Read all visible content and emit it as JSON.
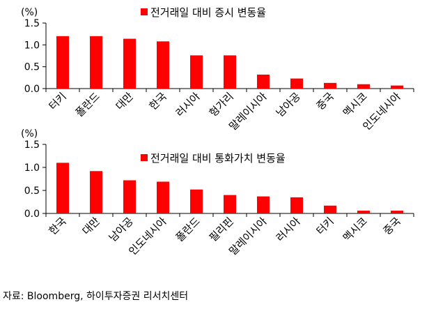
{
  "chart_data": [
    {
      "type": "bar",
      "unit": "(%)",
      "legend": "전거래일 대비 증시 변동율",
      "legend_position": "top-center",
      "bar_color": "#ff0000",
      "categories": [
        "터키",
        "폴란드",
        "대만",
        "한국",
        "러시아",
        "헝가리",
        "말레이시아",
        "남아공",
        "중국",
        "멕시코",
        "인도네시아"
      ],
      "values": [
        1.2,
        1.2,
        1.14,
        1.08,
        0.76,
        0.76,
        0.32,
        0.23,
        0.13,
        0.1,
        0.07
      ],
      "ylim": [
        0,
        1.5
      ],
      "yticks": [
        "0.0",
        "0.5",
        "1.0",
        "1.5"
      ],
      "grid": false
    },
    {
      "type": "bar",
      "unit": "(%)",
      "legend": "전거래일 대비 통화가치 변동율",
      "legend_position": "top-center",
      "bar_color": "#ff0000",
      "categories": [
        "한국",
        "대만",
        "남아공",
        "인도네시아",
        "폴란드",
        "필리핀",
        "말레이시아",
        "러시아",
        "터키",
        "멕시코",
        "중국"
      ],
      "values": [
        1.1,
        0.92,
        0.72,
        0.69,
        0.52,
        0.4,
        0.37,
        0.35,
        0.17,
        0.06,
        0.06
      ],
      "ylim": [
        0,
        1.5
      ],
      "yticks": [
        "0.0",
        "0.5",
        "1.0",
        "1.5"
      ],
      "grid": false
    }
  ],
  "source": "자료: Bloomberg, 하이투자증권 리서치센터"
}
